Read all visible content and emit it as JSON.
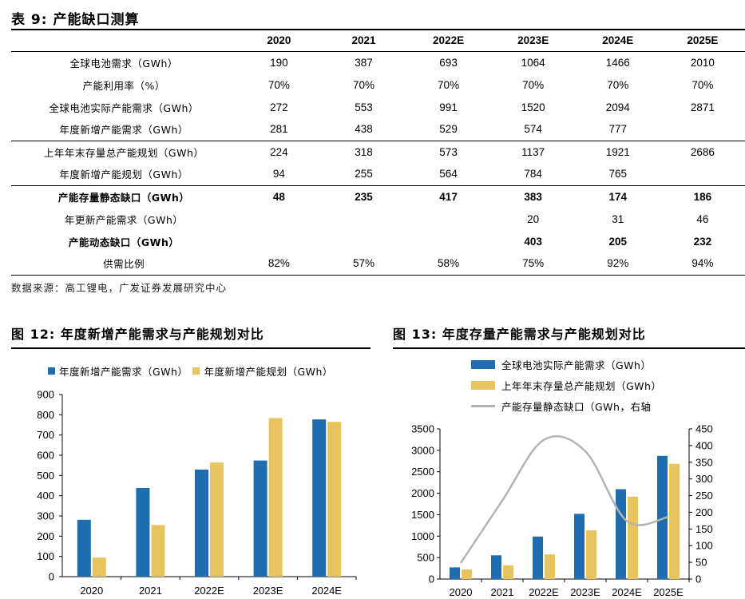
{
  "table": {
    "title": "表 9:  产能缺口测算",
    "columns": [
      "",
      "2020",
      "2021",
      "2022E",
      "2023E",
      "2024E",
      "2025E"
    ],
    "rows": [
      {
        "label": "全球电池需求（GWh）",
        "values": [
          "190",
          "387",
          "693",
          "1064",
          "1466",
          "2010"
        ],
        "bold": false,
        "sep": false
      },
      {
        "label": "产能利用率（%）",
        "values": [
          "70%",
          "70%",
          "70%",
          "70%",
          "70%",
          "70%"
        ],
        "bold": false,
        "sep": false
      },
      {
        "label": "全球电池实际产能需求（GWh）",
        "values": [
          "272",
          "553",
          "991",
          "1520",
          "2094",
          "2871"
        ],
        "bold": false,
        "sep": false
      },
      {
        "label": "年度新增产能需求（GWh）",
        "values": [
          "281",
          "438",
          "529",
          "574",
          "777",
          ""
        ],
        "bold": false,
        "sep": false
      },
      {
        "label": "上年年末存量总产能规划（GWh）",
        "values": [
          "224",
          "318",
          "573",
          "1137",
          "1921",
          "2686"
        ],
        "bold": false,
        "sep": true
      },
      {
        "label": "年度新增产能规划（GWh）",
        "values": [
          "94",
          "255",
          "564",
          "784",
          "765",
          ""
        ],
        "bold": false,
        "sep": false
      },
      {
        "label": "产能存量静态缺口（GWh）",
        "values": [
          "48",
          "235",
          "417",
          "383",
          "174",
          "186"
        ],
        "bold": true,
        "sep": true
      },
      {
        "label": "年更新产能需求（GWh）",
        "values": [
          "",
          "",
          "",
          "20",
          "31",
          "46"
        ],
        "bold": false,
        "sep": false
      },
      {
        "label": "产能动态缺口（GWh）",
        "values": [
          "",
          "",
          "",
          "403",
          "205",
          "232"
        ],
        "bold": true,
        "sep": false
      },
      {
        "label": "供需比例",
        "values": [
          "82%",
          "57%",
          "58%",
          "75%",
          "92%",
          "94%"
        ],
        "bold": false,
        "sep": false
      }
    ],
    "source": "数据来源：高工锂电，广发证券发展研究中心"
  },
  "colors": {
    "blue": "#1f6db1",
    "gold": "#e8c45e",
    "gray": "#b3b3b3"
  },
  "chart_data": [
    {
      "title": "图 12:  年度新增产能需求与产能规划对比",
      "type": "bar",
      "categories": [
        "2020",
        "2021",
        "2022E",
        "2023E",
        "2024E"
      ],
      "series": [
        {
          "name": "年度新增产能需求（GWh）",
          "values": [
            281,
            438,
            529,
            574,
            777
          ]
        },
        {
          "name": "年度新增产能规划（GWh）",
          "values": [
            94,
            255,
            564,
            784,
            765
          ]
        }
      ],
      "ylim": [
        0,
        900
      ],
      "yticks": [
        "0",
        "100",
        "200",
        "300",
        "400",
        "500",
        "600",
        "700",
        "800",
        "900"
      ],
      "legend": "top"
    },
    {
      "title": "图 13:  年度存量产能需求与产能规划对比",
      "type": "bar",
      "categories": [
        "2020",
        "2021",
        "2022E",
        "2023E",
        "2024E",
        "2025E"
      ],
      "series": [
        {
          "name": "全球电池实际产能需求（GWh）",
          "values": [
            272,
            553,
            991,
            1520,
            2094,
            2871
          ],
          "axis": "left"
        },
        {
          "name": "上年年末存量总产能规划（GWh）",
          "values": [
            224,
            318,
            573,
            1137,
            1921,
            2686
          ],
          "axis": "left"
        },
        {
          "name": "产能存量静态缺口（GWh，右轴",
          "values": [
            48,
            235,
            417,
            383,
            174,
            186
          ],
          "axis": "right",
          "type": "line"
        }
      ],
      "ylim": [
        0,
        3500
      ],
      "yticks": [
        "0",
        "500",
        "1000",
        "1500",
        "2000",
        "2500",
        "3000",
        "3500"
      ],
      "y2lim": [
        0,
        450
      ],
      "y2ticks": [
        "0",
        "50",
        "100",
        "150",
        "200",
        "250",
        "300",
        "350",
        "400",
        "450"
      ],
      "legend": "top"
    }
  ]
}
